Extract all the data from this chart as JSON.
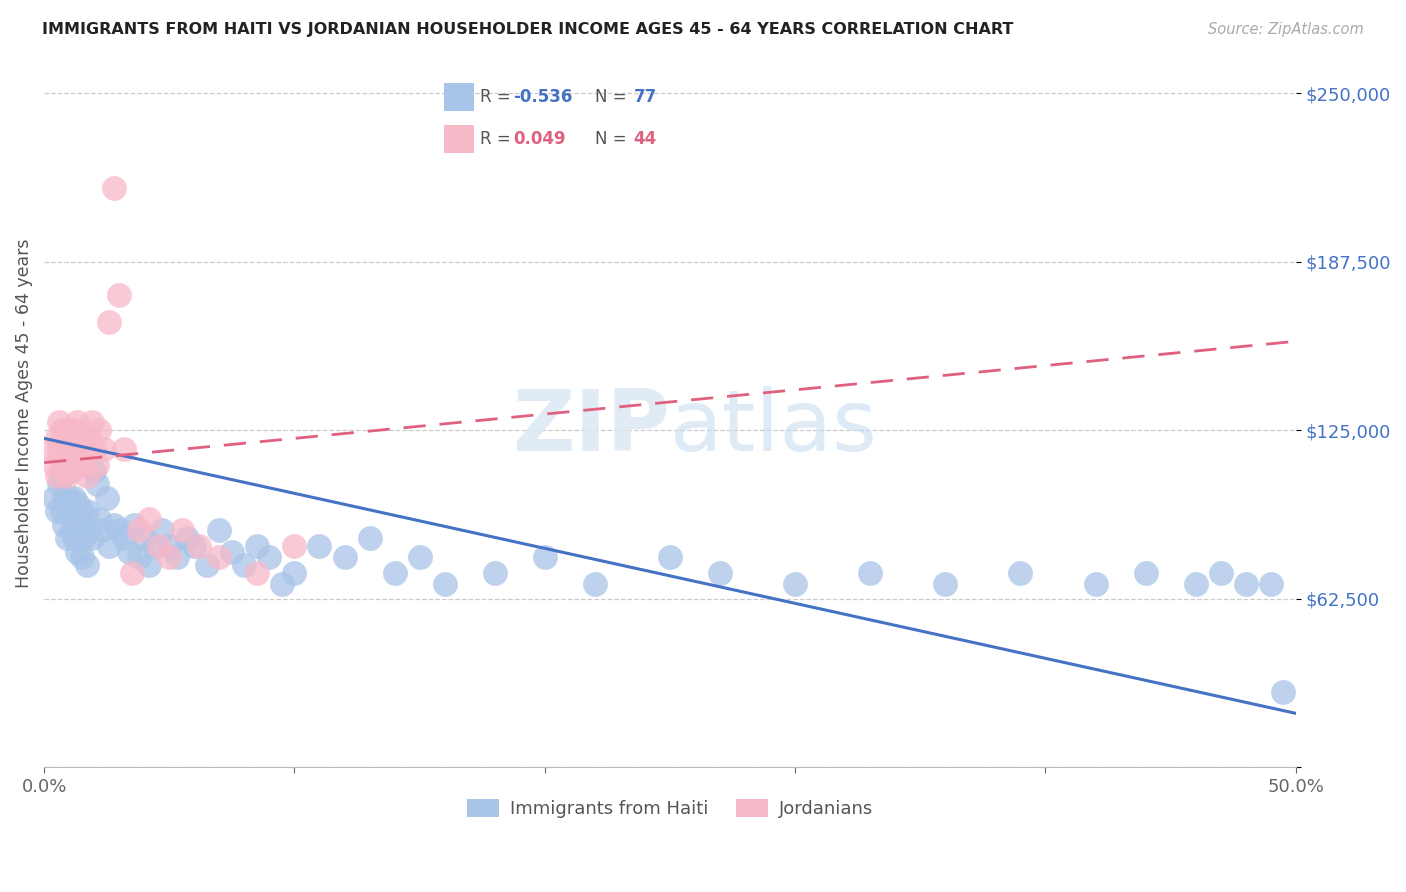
{
  "title": "IMMIGRANTS FROM HAITI VS JORDANIAN HOUSEHOLDER INCOME AGES 45 - 64 YEARS CORRELATION CHART",
  "source": "Source: ZipAtlas.com",
  "ylabel": "Householder Income Ages 45 - 64 years",
  "xlim": [
    0.0,
    0.5
  ],
  "ylim": [
    0,
    262500
  ],
  "yticks": [
    0,
    62500,
    125000,
    187500,
    250000
  ],
  "ytick_labels": [
    "",
    "$62,500",
    "$125,000",
    "$187,500",
    "$250,000"
  ],
  "xticks": [
    0.0,
    0.1,
    0.2,
    0.3,
    0.4,
    0.5
  ],
  "xtick_labels": [
    "0.0%",
    "",
    "",
    "",
    "",
    "50.0%"
  ],
  "legend_blue_R": "-0.536",
  "legend_blue_N": "77",
  "legend_pink_R": "0.049",
  "legend_pink_N": "44",
  "blue_color": "#a8c4e8",
  "pink_color": "#f7b8c8",
  "blue_line_color": "#4472c4",
  "pink_line_color": "#e06080",
  "background_color": "#ffffff",
  "haiti_x": [
    0.004,
    0.005,
    0.006,
    0.007,
    0.007,
    0.008,
    0.008,
    0.009,
    0.009,
    0.01,
    0.01,
    0.011,
    0.011,
    0.012,
    0.012,
    0.013,
    0.013,
    0.014,
    0.014,
    0.015,
    0.015,
    0.016,
    0.016,
    0.017,
    0.017,
    0.018,
    0.019,
    0.02,
    0.021,
    0.022,
    0.023,
    0.025,
    0.026,
    0.028,
    0.03,
    0.032,
    0.034,
    0.036,
    0.038,
    0.04,
    0.042,
    0.044,
    0.047,
    0.05,
    0.053,
    0.057,
    0.06,
    0.065,
    0.07,
    0.075,
    0.08,
    0.085,
    0.09,
    0.095,
    0.1,
    0.11,
    0.12,
    0.13,
    0.14,
    0.15,
    0.16,
    0.18,
    0.2,
    0.22,
    0.25,
    0.27,
    0.3,
    0.33,
    0.36,
    0.39,
    0.42,
    0.44,
    0.46,
    0.47,
    0.48,
    0.49,
    0.495
  ],
  "haiti_y": [
    100000,
    95000,
    105000,
    108000,
    95000,
    100000,
    90000,
    95000,
    85000,
    100000,
    110000,
    95000,
    88000,
    100000,
    85000,
    98000,
    80000,
    92000,
    85000,
    95000,
    78000,
    90000,
    85000,
    95000,
    75000,
    88000,
    85000,
    110000,
    105000,
    92000,
    88000,
    100000,
    82000,
    90000,
    88000,
    85000,
    80000,
    90000,
    78000,
    85000,
    75000,
    82000,
    88000,
    82000,
    78000,
    85000,
    82000,
    75000,
    88000,
    80000,
    75000,
    82000,
    78000,
    68000,
    72000,
    82000,
    78000,
    85000,
    72000,
    78000,
    68000,
    72000,
    78000,
    68000,
    78000,
    72000,
    68000,
    72000,
    68000,
    72000,
    68000,
    72000,
    68000,
    72000,
    68000,
    68000,
    28000
  ],
  "jordan_x": [
    0.003,
    0.004,
    0.005,
    0.005,
    0.006,
    0.006,
    0.007,
    0.007,
    0.008,
    0.008,
    0.009,
    0.009,
    0.01,
    0.01,
    0.011,
    0.011,
    0.012,
    0.012,
    0.013,
    0.014,
    0.014,
    0.015,
    0.016,
    0.017,
    0.018,
    0.019,
    0.02,
    0.021,
    0.022,
    0.024,
    0.026,
    0.028,
    0.03,
    0.032,
    0.035,
    0.038,
    0.042,
    0.046,
    0.05,
    0.055,
    0.062,
    0.07,
    0.085,
    0.1
  ],
  "jordan_y": [
    118000,
    112000,
    122000,
    108000,
    128000,
    118000,
    125000,
    112000,
    122000,
    110000,
    118000,
    108000,
    125000,
    115000,
    120000,
    110000,
    125000,
    118000,
    128000,
    122000,
    115000,
    118000,
    112000,
    108000,
    122000,
    128000,
    118000,
    112000,
    125000,
    118000,
    165000,
    215000,
    175000,
    118000,
    72000,
    88000,
    92000,
    82000,
    78000,
    88000,
    82000,
    78000,
    72000,
    82000
  ],
  "haiti_trendline_x": [
    0.0,
    0.5
  ],
  "haiti_trendline_y": [
    122000,
    20000
  ],
  "jordan_trendline_x": [
    0.0,
    0.5
  ],
  "jordan_trendline_y": [
    113000,
    158000
  ]
}
